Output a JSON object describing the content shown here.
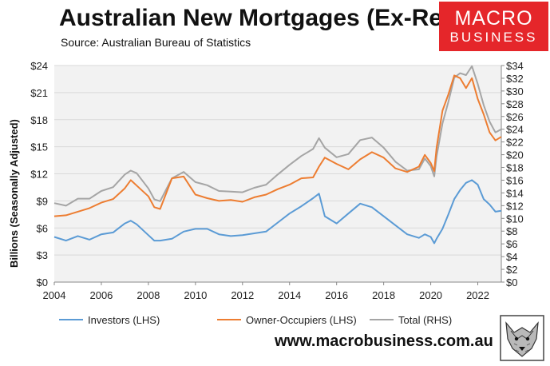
{
  "header": {
    "title": "Australian New Mortgages (Ex-Refi)",
    "subtitle": "Source: Australian Bureau of Statistics"
  },
  "logo": {
    "line1": "MACRO",
    "line2": "BUSINESS"
  },
  "footer": {
    "site": "www.macrobusiness.com.au",
    "mascot_icon": "wolf-logo-icon"
  },
  "chart_data": {
    "type": "line",
    "ylabel": "Billions (Seasonally Adjusted)",
    "x_ticks": [
      "2004",
      "2006",
      "2008",
      "2010",
      "2012",
      "2014",
      "2016",
      "2018",
      "2020",
      "2022"
    ],
    "y_left_ticks": [
      "$0",
      "$3",
      "$6",
      "$9",
      "$12",
      "$15",
      "$18",
      "$21",
      "$24"
    ],
    "y_right_ticks": [
      "$0",
      "$2",
      "$4",
      "$6",
      "$8",
      "$10",
      "$12",
      "$14",
      "$16",
      "$18",
      "$20",
      "$22",
      "$24",
      "$26",
      "$28",
      "$30",
      "$32",
      "$34"
    ],
    "ylim_left": [
      0,
      24
    ],
    "ylim_right": [
      0,
      34
    ],
    "xlim": [
      2004,
      2023
    ],
    "grid": true,
    "legend_position": "bottom",
    "colors": {
      "investors": "#5b9bd5",
      "owner": "#ed7d31",
      "total": "#a5a5a5",
      "logo": "#e5262a"
    },
    "x": [
      2004.0,
      2004.5,
      2005.0,
      2005.5,
      2006.0,
      2006.5,
      2007.0,
      2007.25,
      2007.5,
      2008.0,
      2008.25,
      2008.5,
      2009.0,
      2009.5,
      2010.0,
      2010.5,
      2011.0,
      2011.5,
      2012.0,
      2012.5,
      2013.0,
      2013.5,
      2014.0,
      2014.5,
      2015.0,
      2015.25,
      2015.5,
      2016.0,
      2016.5,
      2017.0,
      2017.5,
      2018.0,
      2018.5,
      2019.0,
      2019.5,
      2019.75,
      2020.0,
      2020.15,
      2020.25,
      2020.5,
      2020.75,
      2021.0,
      2021.25,
      2021.5,
      2021.75,
      2022.0,
      2022.25,
      2022.5,
      2022.75,
      2023.0
    ],
    "series": [
      {
        "name": "Investors (LHS)",
        "axis": "left",
        "values": [
          5.0,
          4.6,
          5.1,
          4.7,
          5.3,
          5.5,
          6.5,
          6.8,
          6.4,
          5.2,
          4.6,
          4.6,
          4.8,
          5.6,
          5.9,
          5.9,
          5.3,
          5.1,
          5.2,
          5.4,
          5.6,
          6.6,
          7.6,
          8.4,
          9.3,
          9.8,
          7.3,
          6.5,
          7.6,
          8.7,
          8.3,
          7.3,
          6.3,
          5.3,
          4.9,
          5.3,
          5.0,
          4.3,
          4.8,
          5.9,
          7.5,
          9.2,
          10.2,
          11.0,
          11.3,
          10.8,
          9.2,
          8.6,
          7.8,
          7.9
        ]
      },
      {
        "name": "Owner-Occupiers (LHS)",
        "axis": "left",
        "values": [
          7.3,
          7.4,
          7.8,
          8.2,
          8.8,
          9.2,
          10.4,
          11.3,
          10.7,
          9.5,
          8.3,
          8.1,
          11.5,
          11.7,
          9.7,
          9.3,
          9.0,
          9.1,
          8.9,
          9.4,
          9.7,
          10.3,
          10.8,
          11.5,
          11.6,
          12.8,
          13.8,
          13.1,
          12.5,
          13.6,
          14.4,
          13.8,
          12.6,
          12.2,
          12.8,
          14.1,
          13.2,
          12.3,
          14.9,
          19.0,
          20.8,
          22.9,
          22.6,
          21.5,
          22.6,
          20.3,
          18.6,
          16.6,
          15.7,
          16.1
        ]
      },
      {
        "name": "Total (RHS)",
        "axis": "right",
        "values": [
          12.4,
          12.0,
          13.1,
          13.1,
          14.3,
          14.9,
          16.9,
          17.5,
          17.1,
          14.7,
          13.0,
          12.7,
          16.3,
          17.3,
          15.7,
          15.2,
          14.3,
          14.2,
          14.1,
          14.8,
          15.3,
          16.9,
          18.4,
          19.8,
          20.9,
          22.6,
          21.1,
          19.6,
          20.1,
          22.3,
          22.7,
          21.1,
          18.9,
          17.5,
          17.7,
          19.4,
          18.2,
          16.6,
          19.7,
          24.9,
          28.3,
          32.1,
          32.8,
          32.5,
          33.9,
          31.1,
          27.8,
          25.2,
          23.5,
          24.0
        ]
      }
    ]
  }
}
